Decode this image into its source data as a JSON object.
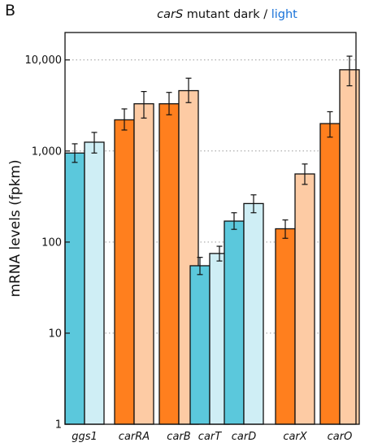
{
  "panel_label": "B",
  "title": {
    "gene": "carS",
    "middle": " mutant dark / ",
    "light": "light"
  },
  "chart_data": {
    "type": "bar",
    "title": "carS mutant dark / light",
    "ylabel": "mRNA levels (fpkm)",
    "xlabel": "",
    "yscale": "log",
    "ylim": [
      1,
      20000
    ],
    "yticks": [
      1,
      10,
      100,
      1000,
      10000
    ],
    "ytick_labels": [
      "1",
      "10",
      "100",
      "1,000",
      "10,000"
    ],
    "grid": "horizontal dotted at major ticks",
    "categories": [
      "ggs1",
      "carRA",
      "carB",
      "carT",
      "carD",
      "carX",
      "carO"
    ],
    "series": [
      {
        "condition": "dark",
        "values": [
          950,
          2200,
          3300,
          55,
          170,
          140,
          2000
        ],
        "err_low": [
          750,
          1700,
          2500,
          44,
          138,
          110,
          1420
        ],
        "err_high": [
          1200,
          2900,
          4400,
          68,
          210,
          175,
          2700
        ]
      },
      {
        "condition": "light",
        "values": [
          1250,
          3300,
          4600,
          75,
          265,
          560,
          7800
        ],
        "err_low": [
          950,
          2300,
          3400,
          62,
          210,
          430,
          5200
        ],
        "err_high": [
          1600,
          4500,
          6300,
          90,
          330,
          720,
          11000
        ]
      }
    ],
    "bar_colors": {
      "dark": [
        "#5bc8dc",
        "#ff7f1e",
        "#ff7f1e",
        "#5bc8dc",
        "#5bc8dc",
        "#ff7f1e",
        "#ff7f1e"
      ],
      "light": [
        "#cfeef5",
        "#fdcba4",
        "#fdcba4",
        "#cfeef5",
        "#cfeef5",
        "#fdcba4",
        "#fdcba4"
      ]
    },
    "light_label_color": "#1a73d9"
  }
}
